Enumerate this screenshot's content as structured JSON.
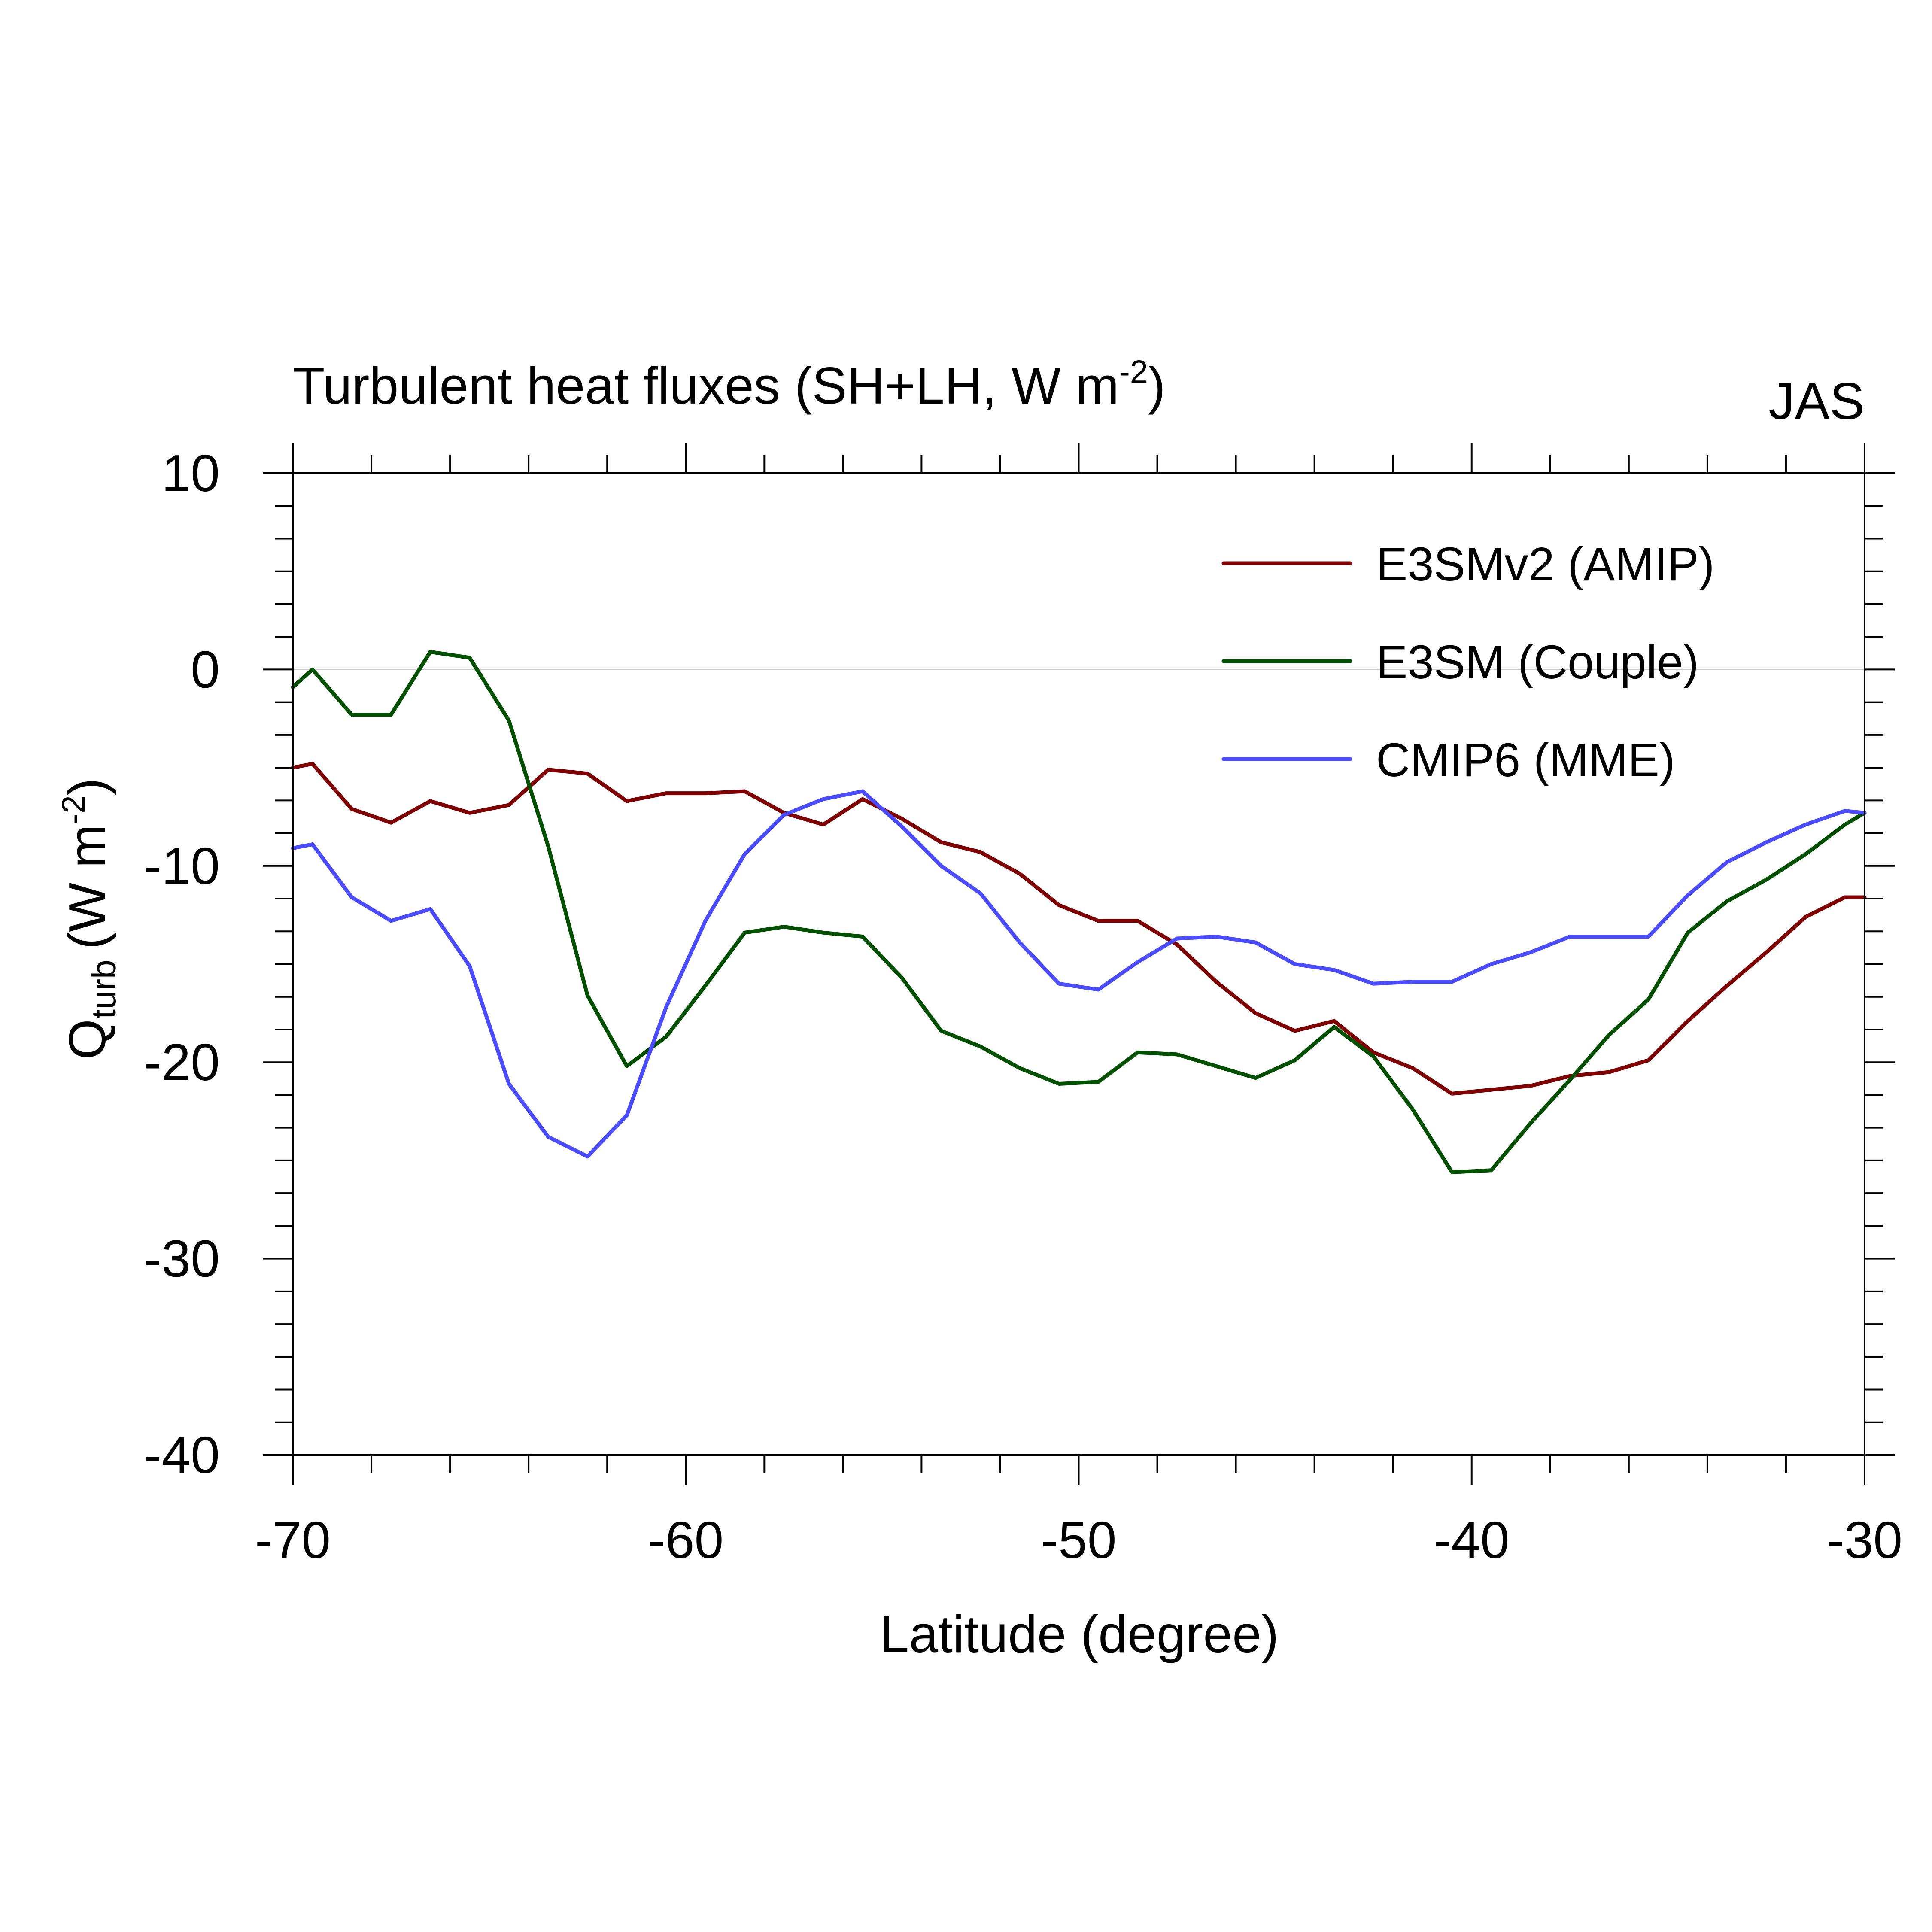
{
  "figure": {
    "title": "Turbulent heat fluxes (SH+LH, W m",
    "title_exponent": "-2",
    "title_close": ")",
    "season": "JAS"
  },
  "chart_data": {
    "type": "line",
    "title": "Turbulent heat fluxes (SH+LH, W m-2)",
    "xlabel": "Latitude (degree)",
    "ylabel": "Q_turb (W m-2)",
    "ylabel_parts": {
      "symbol": "Q",
      "subscript": "turb",
      "unit": "(W m",
      "exponent": "-2",
      "close": ")"
    },
    "xlim": [
      -70,
      -30
    ],
    "ylim": [
      -40,
      10
    ],
    "x_ticks": [
      -70,
      -60,
      -50,
      -40,
      -30
    ],
    "y_ticks": [
      10,
      0,
      -10,
      -20,
      -30,
      -40
    ],
    "zero_reference_line": true,
    "grid": false,
    "legend_position": "top-right",
    "x": [
      -70,
      -69.5,
      -68.5,
      -67.5,
      -66.5,
      -65.5,
      -64.5,
      -63.5,
      -62.5,
      -61.5,
      -60.5,
      -59.5,
      -58.5,
      -57.5,
      -56.5,
      -55.5,
      -54.5,
      -53.5,
      -52.5,
      -51.5,
      -50.5,
      -49.5,
      -48.5,
      -47.5,
      -46.5,
      -45.5,
      -44.5,
      -43.5,
      -42.5,
      -41.5,
      -40.5,
      -39.5,
      -38.5,
      -37.5,
      -36.5,
      -35.5,
      -34.5,
      -33.5,
      -32.5,
      -31.5,
      -30.5,
      -30
    ],
    "series": [
      {
        "name": "E3SMv2 (AMIP)",
        "color": "#7f0000",
        "values": [
          -5.0,
          -4.8,
          -7.1,
          -7.8,
          -6.7,
          -7.3,
          -6.9,
          -5.1,
          -5.3,
          -6.7,
          -6.3,
          -6.3,
          -6.2,
          -7.3,
          -7.9,
          -6.6,
          -7.6,
          -8.8,
          -9.3,
          -10.4,
          -12.0,
          -12.8,
          -12.8,
          -14.0,
          -15.9,
          -17.5,
          -18.4,
          -17.9,
          -19.5,
          -20.3,
          -21.6,
          -21.4,
          -21.2,
          -20.7,
          -20.5,
          -19.9,
          -17.9,
          -16.1,
          -14.4,
          -12.6,
          -11.6,
          -11.6
        ]
      },
      {
        "name": "E3SM (Couple)",
        "color": "#005000",
        "values": [
          -0.9,
          0.0,
          -2.3,
          -2.3,
          0.9,
          0.6,
          -2.6,
          -9.0,
          -16.6,
          -20.2,
          -18.7,
          -16.1,
          -13.4,
          -13.1,
          -13.4,
          -13.6,
          -15.7,
          -18.4,
          -19.2,
          -20.3,
          -21.1,
          -21.0,
          -19.5,
          -19.6,
          -20.2,
          -20.8,
          -19.9,
          -18.2,
          -19.7,
          -22.4,
          -25.6,
          -25.5,
          -23.1,
          -20.9,
          -18.6,
          -16.8,
          -13.4,
          -11.8,
          -10.7,
          -9.4,
          -7.9,
          -7.3
        ]
      },
      {
        "name": "CMIP6 (MME)",
        "color": "#4b4bff",
        "values": [
          -9.1,
          -8.9,
          -11.6,
          -12.8,
          -12.2,
          -15.1,
          -21.1,
          -23.8,
          -24.8,
          -22.7,
          -17.2,
          -12.8,
          -9.4,
          -7.4,
          -6.6,
          -6.2,
          -8.0,
          -10.0,
          -11.4,
          -13.9,
          -16.0,
          -16.3,
          -14.9,
          -13.7,
          -13.6,
          -13.9,
          -15.0,
          -15.3,
          -16.0,
          -15.9,
          -15.9,
          -15.0,
          -14.4,
          -13.6,
          -13.6,
          -13.6,
          -11.5,
          -9.8,
          -8.8,
          -7.9,
          -7.2,
          -7.3
        ]
      }
    ]
  }
}
